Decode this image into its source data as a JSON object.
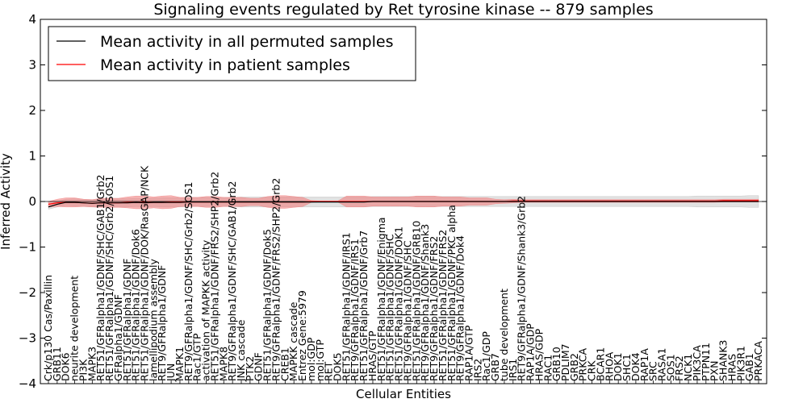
{
  "chart_data": {
    "type": "line",
    "title": "Signaling events regulated by Ret tyrosine kinase -- 879 samples",
    "xlabel": "Cellular Entities",
    "ylabel": "Inferred Activity",
    "ylim": [
      -4,
      4
    ],
    "yticks": [
      "−4",
      "−3",
      "−2",
      "−1",
      "0",
      "1",
      "2",
      "3",
      "4"
    ],
    "grid": false,
    "legend_position": "top-left",
    "categories": [
      "Crk/p130 Cas/Paxillin",
      "GRB11",
      "DOK6",
      "neurite development",
      "PI3K",
      "MAPK3",
      "RET51/GFRalpha1/GDNF/SHC/GAB1/Grb2",
      "RET51/GFRalpha1/GDNF/SHC/Grb2/SOS1",
      "GFRalpha1/GDNF",
      "RET51/GFRalpha1/GDNF",
      "RET51/GFRalpha1/GDNF/Dok6",
      "RET51/GFRalpha1/GDNF/DOK/RasGAP/NCK",
      "lamellipodium assembly",
      "RET9/GFRalpha1/GDNF",
      "JUN",
      "MAPK1",
      "RET9/GFRalpha1/GDNF/SHC/Grb2/SOS1",
      "Rac1/GTP",
      "activation of MAPKK activity",
      "RET51/GFRalpha1/GDNF/FRS2/SHP2/Grb2",
      "MAPK8",
      "RET9/GFRalpha1/GDNF/SHC/GAB1/Grb2",
      "JNK cascade",
      "PTK2",
      "GDNF",
      "RET51/GFRalpha1/GDNF/Dok5",
      "RET9/GFRalpha1/GDNF/FRS2/SHP2/Grb2",
      "CREB1",
      "MAPKK cascade",
      "Entrez Gene:5979",
      "mol:GDP",
      "mol:GTP",
      "RET",
      "DOK5",
      "RET51/GFRalpha1/GDNF/IRS1",
      "RET9/GFRalpha1/GDNF/IRS1",
      "RET51/GFRalpha1/GDNF/Grb7",
      "HRAS/GTP",
      "RET51/GFRalpha1/GDNF/Enigma",
      "RET51/GFRalpha1/GDNF/SHC",
      "RET51/GFRalpha1/GDNF/DOK1",
      "RET9/GFRalpha1/GDNF/SHC",
      "RET51/GFRalpha1/GDNF/GRB10",
      "RET9/GFRalpha1/GDNF/Shank3",
      "RET9/GFRalpha1/GDNF/FRS2",
      "RET51/GFRalpha1/GDNF/FRS2",
      "RET51/GFRalpha1/GDNF/PKC alpha",
      "RET9/GFRalpha1/GDNF/Dok4",
      "RAP1A/GTP",
      "IRS2",
      "Rac1/GDP",
      "GRB7",
      "tube development",
      "IRS1",
      "RET9/GFRalpha1/GDNF/Shank3/Grb2",
      "RAP1A/GDP",
      "HRAS/GDP",
      "RAC1",
      "GRB10",
      "PDLIM7",
      "GRB2",
      "PRKCA",
      "CRK",
      "BCAR1",
      "RHOA",
      "DOK1",
      "SHC1",
      "DOK4",
      "RAP1A",
      "SRC",
      "RASA1",
      "SOS1",
      "FRS2",
      "NCK1",
      "PIK3CA",
      "PTPN11",
      "PXN",
      "SHANK3",
      "HRAS",
      "PIK3R1",
      "GAB1",
      "PRKACA"
    ],
    "series": [
      {
        "name": "Mean activity in all permuted samples",
        "color": "#000000",
        "band_color": "#bdbdbd",
        "values": [
          -0.12,
          -0.06,
          -0.02,
          -0.02,
          -0.03,
          -0.04,
          -0.03,
          -0.03,
          -0.03,
          -0.03,
          -0.02,
          -0.03,
          -0.02,
          -0.02,
          -0.02,
          -0.02,
          -0.01,
          -0.01,
          -0.01,
          -0.01,
          -0.01,
          -0.01,
          -0.01,
          -0.01,
          -0.01,
          -0.01,
          -0.01,
          -0.01,
          -0.01,
          -0.01,
          -0.01,
          -0.01,
          -0.01,
          -0.01,
          -0.01,
          -0.01,
          -0.01,
          0.0,
          0.0,
          0.0,
          0.0,
          0.0,
          0.0,
          0.0,
          0.0,
          0.0,
          0.0,
          0.0,
          0.0,
          0.0,
          0.0,
          0.0,
          0.0,
          0.0,
          0.0,
          0.0,
          0.0,
          0.0,
          0.0,
          0.0,
          0.0,
          0.0,
          0.0,
          0.0,
          0.0,
          0.0,
          0.0,
          0.0,
          0.0,
          0.0,
          0.0,
          0.0,
          0.0,
          0.0,
          0.0,
          0.0,
          0.0,
          0.0,
          0.0,
          0.0,
          0.0,
          0.0
        ],
        "band": [
          0.05,
          0.06,
          0.07,
          0.08,
          0.08,
          0.08,
          0.08,
          0.09,
          0.09,
          0.09,
          0.09,
          0.09,
          0.09,
          0.1,
          0.1,
          0.1,
          0.1,
          0.1,
          0.1,
          0.1,
          0.1,
          0.1,
          0.11,
          0.11,
          0.11,
          0.11,
          0.11,
          0.11,
          0.11,
          0.11,
          0.11,
          0.11,
          0.11,
          0.11,
          0.11,
          0.11,
          0.11,
          0.11,
          0.11,
          0.11,
          0.11,
          0.11,
          0.11,
          0.11,
          0.11,
          0.11,
          0.11,
          0.11,
          0.11,
          0.11,
          0.11,
          0.11,
          0.11,
          0.11,
          0.11,
          0.11,
          0.11,
          0.11,
          0.11,
          0.11,
          0.11,
          0.11,
          0.11,
          0.11,
          0.11,
          0.11,
          0.11,
          0.11,
          0.11,
          0.11,
          0.11,
          0.11,
          0.11,
          0.11,
          0.12,
          0.12,
          0.12,
          0.12,
          0.12,
          0.12,
          0.13,
          0.13
        ]
      },
      {
        "name": "Mean activity in patient samples",
        "color": "#ff0000",
        "band_color": "#f08080",
        "values": [
          -0.06,
          -0.03,
          -0.02,
          -0.02,
          -0.03,
          -0.04,
          -0.03,
          -0.03,
          -0.03,
          -0.02,
          -0.02,
          -0.02,
          -0.02,
          -0.02,
          -0.01,
          -0.01,
          -0.01,
          -0.01,
          -0.01,
          -0.01,
          -0.01,
          -0.01,
          -0.01,
          -0.01,
          -0.01,
          -0.01,
          -0.01,
          -0.01,
          -0.01,
          -0.01,
          0.0,
          0.0,
          0.0,
          0.0,
          0.0,
          0.0,
          0.0,
          0.0,
          0.0,
          0.0,
          0.0,
          0.0,
          0.0,
          0.0,
          0.0,
          0.0,
          0.0,
          0.0,
          0.0,
          0.0,
          0.0,
          0.0,
          0.0,
          0.01,
          0.01,
          0.01,
          0.01,
          0.01,
          0.01,
          0.01,
          0.01,
          0.01,
          0.01,
          0.01,
          0.01,
          0.01,
          0.01,
          0.01,
          0.01,
          0.01,
          0.01,
          0.01,
          0.01,
          0.01,
          0.01,
          0.01,
          0.01,
          0.02,
          0.02,
          0.02,
          0.02,
          0.02
        ],
        "band": [
          0.06,
          0.08,
          0.1,
          0.1,
          0.08,
          0.08,
          0.1,
          0.1,
          0.1,
          0.12,
          0.14,
          0.14,
          0.12,
          0.14,
          0.14,
          0.1,
          0.1,
          0.1,
          0.12,
          0.12,
          0.1,
          0.1,
          0.1,
          0.08,
          0.08,
          0.12,
          0.14,
          0.14,
          0.12,
          0.1,
          0.02,
          0.01,
          0.01,
          0.01,
          0.12,
          0.12,
          0.12,
          0.1,
          0.1,
          0.1,
          0.1,
          0.1,
          0.12,
          0.12,
          0.12,
          0.1,
          0.1,
          0.1,
          0.08,
          0.08,
          0.08,
          0.05,
          0.04,
          0.04,
          0.03,
          0.03,
          0.03,
          0.03,
          0.03,
          0.03,
          0.03,
          0.03,
          0.03,
          0.03,
          0.03,
          0.03,
          0.03,
          0.03,
          0.03,
          0.03,
          0.03,
          0.03,
          0.03,
          0.03,
          0.03,
          0.03,
          0.03,
          0.03,
          0.03,
          0.03,
          0.03,
          0.03
        ]
      }
    ]
  }
}
